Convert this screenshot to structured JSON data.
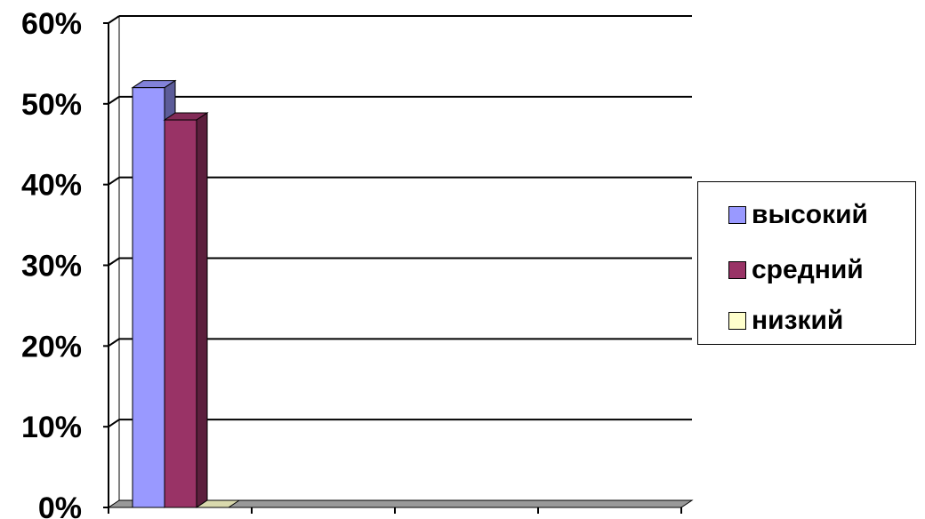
{
  "chart_data": {
    "type": "bar",
    "categories": [
      "",
      "",
      "",
      ""
    ],
    "series": [
      {
        "name": "высокий",
        "values": [
          52,
          null,
          null,
          null
        ],
        "color": "#9999FF"
      },
      {
        "name": "средний",
        "values": [
          48,
          null,
          null,
          null
        ],
        "color": "#993366"
      },
      {
        "name": "низкий",
        "values": [
          0,
          null,
          null,
          null
        ],
        "color": "#FFFFCC"
      }
    ],
    "y_ticks": [
      "0%",
      "10%",
      "20%",
      "30%",
      "40%",
      "50%",
      "60%"
    ],
    "ylim": [
      0,
      60
    ],
    "title": "",
    "xlabel": "",
    "ylabel": "",
    "grid": true,
    "legend_position": "right",
    "floor_color": "#999999"
  }
}
